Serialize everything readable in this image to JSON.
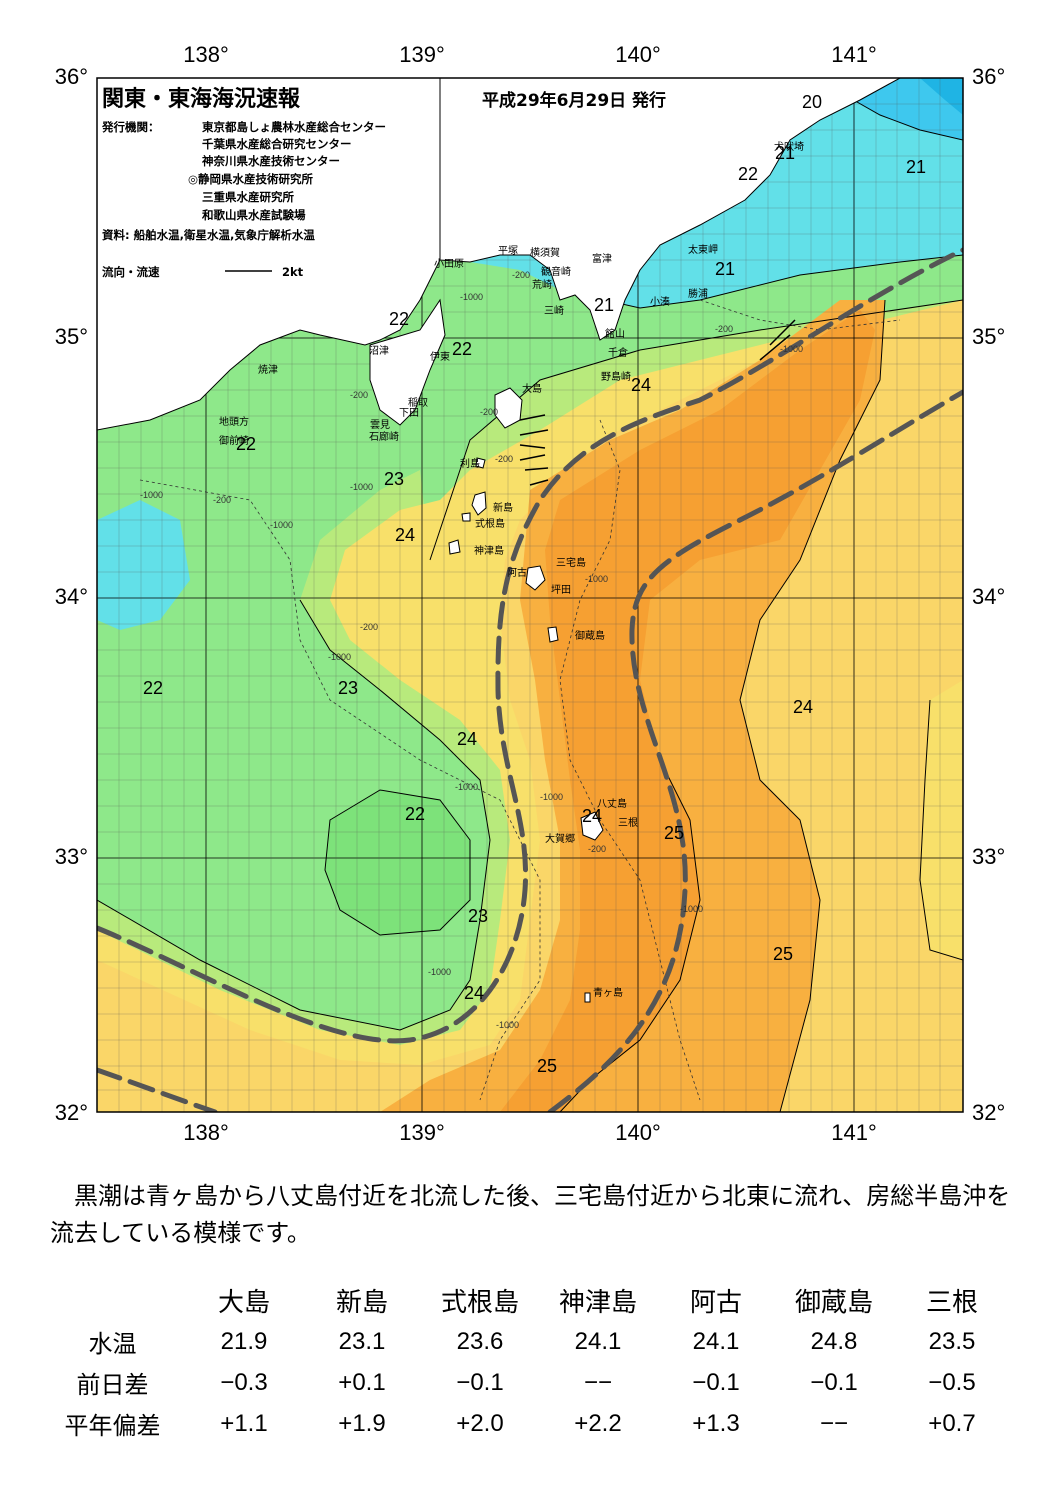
{
  "map": {
    "title": "関東・東海海況速報",
    "date": "平成29年6月29日 発行",
    "publisher_label": "発行機関：",
    "publishers": [
      "東京都島しょ農林水産総合センター",
      "千葉県水産総合研究センター",
      "神奈川県水産技術センター",
      "◎静岡県水産技術研究所",
      "三重県水産研究所",
      "和歌山県水産試験場"
    ],
    "sources": "資料: 船舶水温,衛星水温,気象庁解析水温",
    "current_legend": "流向・流速",
    "current_scale": "2kt",
    "lon_labels": [
      "138°",
      "139°",
      "140°",
      "141°"
    ],
    "lat_labels": [
      "36°",
      "35°",
      "34°",
      "33°",
      "32°"
    ],
    "colors": {
      "t20": "#3ec8ee",
      "t21": "#62e0e8",
      "t22": "#8ee88a",
      "t22b": "#7de27a",
      "t23": "#b8ea7c",
      "t24a": "#f8e06a",
      "t24b": "#fad668",
      "t25": "#f8b040",
      "t26": "#f6a032",
      "land": "#ffffff",
      "kuroshio_axis": "#555555"
    },
    "isotherm_labels": [
      {
        "text": "20"
      },
      {
        "text": "21"
      },
      {
        "text": "21"
      },
      {
        "text": "22"
      },
      {
        "text": "21"
      },
      {
        "text": "21"
      },
      {
        "text": "22"
      },
      {
        "text": "22"
      },
      {
        "text": "24"
      },
      {
        "text": "22"
      },
      {
        "text": "23"
      },
      {
        "text": "24"
      },
      {
        "text": "22"
      },
      {
        "text": "23"
      },
      {
        "text": "24"
      },
      {
        "text": "22"
      },
      {
        "text": "24"
      },
      {
        "text": "24"
      },
      {
        "text": "25"
      },
      {
        "text": "23"
      },
      {
        "text": "25"
      },
      {
        "text": "24"
      },
      {
        "text": "25"
      }
    ],
    "place_names": [
      "小田原",
      "平塚",
      "横須賀",
      "観音崎",
      "荒崎",
      "三崎",
      "富津",
      "館山",
      "千倉",
      "野島崎",
      "太東岬",
      "勝浦",
      "小湊",
      "犬吠埼",
      "沼津",
      "伊東",
      "焼津",
      "稲取",
      "下田",
      "雲見",
      "石廊崎",
      "地頭方",
      "御前崎",
      "大島",
      "利島",
      "新島",
      "式根島",
      "神津島",
      "三宅島",
      "阿古",
      "坪田",
      "御蔵島",
      "八丈島",
      "三根",
      "大賀郷",
      "青ヶ島"
    ],
    "depth_labels": [
      "-200",
      "-1000"
    ]
  },
  "summary": "黒潮は青ヶ島から八丈島付近を北流した後、三宅島付近から北東に流れ、房総半島沖を流去している模様です。",
  "table": {
    "columns": [
      "大島",
      "新島",
      "式根島",
      "神津島",
      "阿古",
      "御蔵島",
      "三根"
    ],
    "rows": [
      {
        "label": "水温",
        "values": [
          "21.9",
          "23.1",
          "23.6",
          "24.1",
          "24.1",
          "24.8",
          "23.5"
        ]
      },
      {
        "label": "前日差",
        "values": [
          "−0.3",
          "+0.1",
          "−0.1",
          "−−",
          "−0.1",
          "−0.1",
          "−0.5"
        ]
      },
      {
        "label": "平年偏差",
        "values": [
          "+1.1",
          "+1.9",
          "+2.0",
          "+2.2",
          "+1.3",
          "−−",
          "+0.7"
        ]
      }
    ]
  }
}
